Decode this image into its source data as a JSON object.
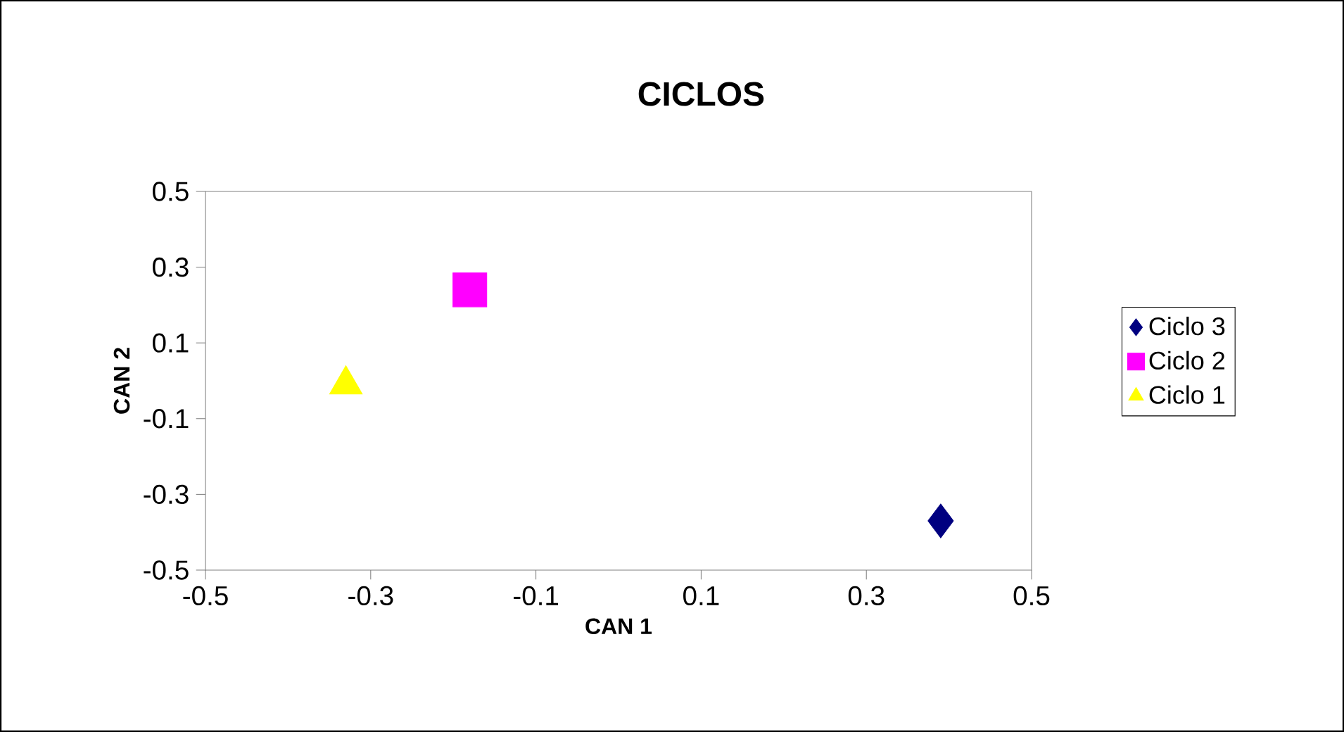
{
  "chart_data": {
    "type": "scatter",
    "title": "CICLOS",
    "xlabel": "CAN 1",
    "ylabel": "CAN 2",
    "xlim": [
      -0.5,
      0.5
    ],
    "ylim": [
      -0.5,
      0.5
    ],
    "xticks": [
      -0.5,
      -0.3,
      -0.1,
      0.1,
      0.3,
      0.5
    ],
    "yticks": [
      -0.5,
      -0.3,
      -0.1,
      0.1,
      0.3,
      0.5
    ],
    "grid": false,
    "legend": "right",
    "series": [
      {
        "name": "Ciclo 3",
        "color": "#000080",
        "marker": "diamond",
        "x": [
          0.39
        ],
        "values": [
          -0.37
        ]
      },
      {
        "name": "Ciclo 2",
        "color": "#ff00ff",
        "marker": "square",
        "x": [
          -0.18
        ],
        "values": [
          0.24
        ]
      },
      {
        "name": "Ciclo 1",
        "color": "#ffff00",
        "marker": "triangle",
        "x": [
          -0.33
        ],
        "values": [
          -0.01
        ]
      }
    ]
  }
}
